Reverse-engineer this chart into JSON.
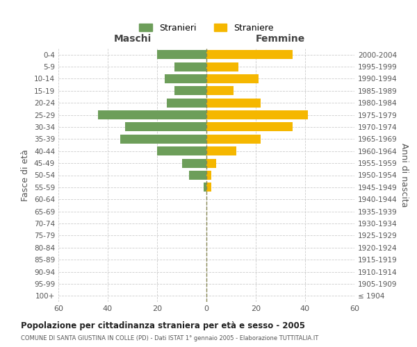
{
  "age_groups": [
    "100+",
    "95-99",
    "90-94",
    "85-89",
    "80-84",
    "75-79",
    "70-74",
    "65-69",
    "60-64",
    "55-59",
    "50-54",
    "45-49",
    "40-44",
    "35-39",
    "30-34",
    "25-29",
    "20-24",
    "15-19",
    "10-14",
    "5-9",
    "0-4"
  ],
  "birth_years": [
    "≤ 1904",
    "1905-1909",
    "1910-1914",
    "1915-1919",
    "1920-1924",
    "1925-1929",
    "1930-1934",
    "1935-1939",
    "1940-1944",
    "1945-1949",
    "1950-1954",
    "1955-1959",
    "1960-1964",
    "1965-1969",
    "1970-1974",
    "1975-1979",
    "1980-1984",
    "1985-1989",
    "1990-1994",
    "1995-1999",
    "2000-2004"
  ],
  "males": [
    0,
    0,
    0,
    0,
    0,
    0,
    0,
    0,
    0,
    1,
    7,
    10,
    20,
    35,
    33,
    44,
    16,
    13,
    17,
    13,
    20
  ],
  "females": [
    0,
    0,
    0,
    0,
    0,
    0,
    0,
    0,
    0,
    2,
    2,
    4,
    12,
    22,
    35,
    41,
    22,
    11,
    21,
    13,
    35
  ],
  "male_color": "#6d9e5a",
  "female_color": "#f5b700",
  "xlim": 60,
  "title": "Popolazione per cittadinanza straniera per età e sesso - 2005",
  "subtitle": "COMUNE DI SANTA GIUSTINA IN COLLE (PD) - Dati ISTAT 1° gennaio 2005 - Elaborazione TUTTITALIA.IT",
  "xlabel_left": "Maschi",
  "xlabel_right": "Femmine",
  "ylabel_left": "Fasce di età",
  "ylabel_right": "Anni di nascita",
  "legend_male": "Stranieri",
  "legend_female": "Straniere",
  "background_color": "#ffffff",
  "grid_color": "#cccccc"
}
